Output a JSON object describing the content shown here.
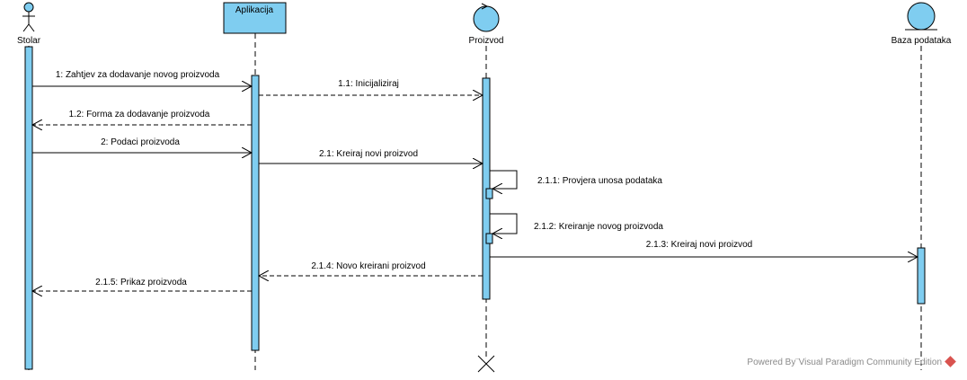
{
  "participants": [
    {
      "id": "stolar",
      "kind": "actor",
      "label": "Stolar"
    },
    {
      "id": "aplikacija",
      "kind": "boundary-box",
      "label": "Aplikacija"
    },
    {
      "id": "proizvod",
      "kind": "control",
      "label": "Proizvod"
    },
    {
      "id": "baza",
      "kind": "entity",
      "label": "Baza podataka"
    }
  ],
  "messages": [
    {
      "label": "1: Zahtjev za dodavanje novog proizvoda",
      "from": "stolar",
      "to": "aplikacija",
      "kind": "call"
    },
    {
      "label": "1.1: Inicijaliziraj",
      "from": "aplikacija",
      "to": "proizvod",
      "kind": "return"
    },
    {
      "label": "1.2: Forma za dodavanje proizvoda",
      "from": "aplikacija",
      "to": "stolar",
      "kind": "return"
    },
    {
      "label": "2: Podaci proizvoda",
      "from": "stolar",
      "to": "aplikacija",
      "kind": "call"
    },
    {
      "label": "2.1: Kreiraj novi proizvod",
      "from": "aplikacija",
      "to": "proizvod",
      "kind": "call"
    },
    {
      "label": "2.1.1: Provjera unosa podataka",
      "from": "proizvod",
      "to": "proizvod",
      "kind": "self"
    },
    {
      "label": "2.1.2: Kreiranje novog proizvoda",
      "from": "proizvod",
      "to": "proizvod",
      "kind": "self"
    },
    {
      "label": "2.1.3: Kreiraj novi proizvod",
      "from": "proizvod",
      "to": "baza",
      "kind": "call"
    },
    {
      "label": "2.1.4: Novo kreirani proizvod",
      "from": "proizvod",
      "to": "aplikacija",
      "kind": "return"
    },
    {
      "label": "2.1.5: Prikaz proizvoda",
      "from": "aplikacija",
      "to": "stolar",
      "kind": "return"
    }
  ],
  "watermark": {
    "text": "Powered By¨Visual Paradigm Community Edition",
    "logo_color": "#d9534f"
  },
  "colors": {
    "fill": "#7fcdf0",
    "line": "#000000"
  }
}
